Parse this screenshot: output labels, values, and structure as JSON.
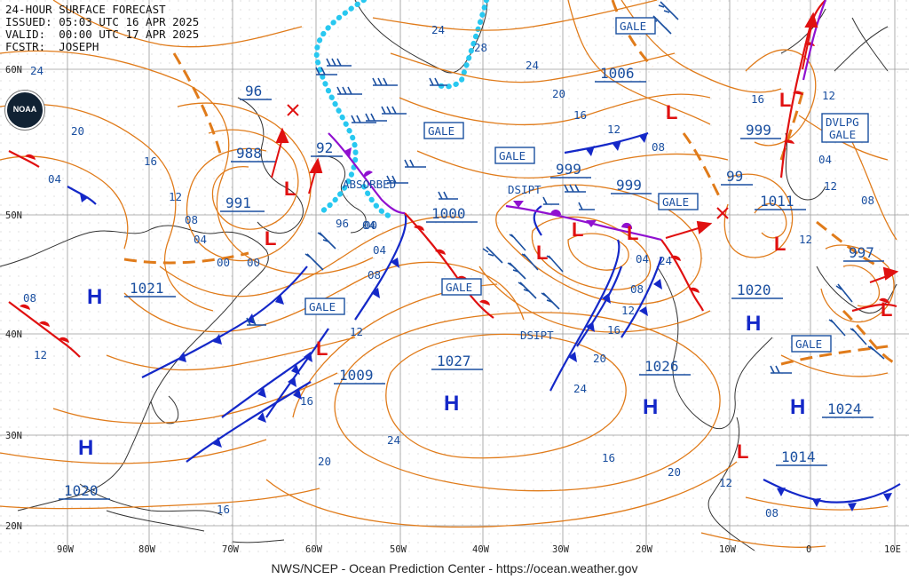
{
  "header": {
    "line1": "24-HOUR SURFACE FORECAST",
    "line2": "ISSUED: 05:03 UTC 16 APR 2025",
    "line3": "VALID:  00:00 UTC 17 APR 2025",
    "line4": "FCSTR:  JOSEPH"
  },
  "logo_text": "NOAA",
  "footer": "NWS/NCEP - Ocean Prediction Center - https://ocean.weather.gov",
  "colors": {
    "isobar": "#e07b1a",
    "cold_front": "#1428c8",
    "warm_front": "#e01010",
    "occluded": "#9010d0",
    "ice": "#28c8f0",
    "label": "#1a4fa0",
    "high": "#1428c8",
    "low": "#e01010"
  },
  "lon_labels": [
    "90W",
    "80W",
    "70W",
    "60W",
    "50W",
    "40W",
    "30W",
    "20W",
    "10W",
    "0",
    "10E"
  ],
  "lat_labels": [
    "60N",
    "50N",
    "40N",
    "30N",
    "20N"
  ],
  "pressure_labels": [
    "96",
    "988",
    "991",
    "92",
    "1000",
    "1021",
    "1006",
    "999",
    "999",
    "999",
    "99",
    "1011",
    "997",
    "1020",
    "1009",
    "1027",
    "1026",
    "1024",
    "1014",
    "1020"
  ],
  "isobar_labels": [
    "24",
    "28",
    "24",
    "20",
    "16",
    "12",
    "08",
    "04",
    "00",
    "96",
    "08",
    "12",
    "16",
    "20",
    "24",
    "04",
    "00",
    "04",
    "08",
    "12",
    "16",
    "20",
    "24",
    "16",
    "12",
    "08",
    "04",
    "00",
    "04",
    "08",
    "12",
    "16",
    "20",
    "24",
    "16",
    "12",
    "08",
    "04",
    "12",
    "12",
    "08",
    "12",
    "16",
    "20",
    "24"
  ],
  "gale_boxes": [
    "GALE",
    "GALE",
    "GALE",
    "GALE",
    "GALE",
    "GALE",
    "GALE"
  ],
  "dvlpg_gale": [
    "DVLPG",
    "GALE"
  ],
  "text_notes": [
    "ABSORBED",
    "DSIPT",
    "DSIPT"
  ],
  "high_symbol": "H",
  "low_symbol": "L"
}
